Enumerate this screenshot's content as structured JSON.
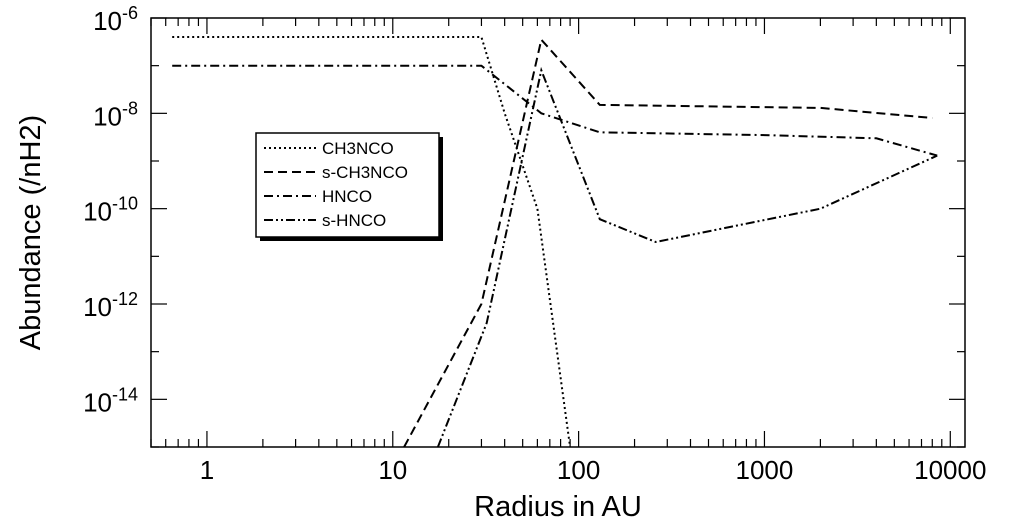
{
  "chart_data": {
    "type": "line",
    "title": "",
    "xlabel": "Radius in AU",
    "ylabel": "Abundance (/nH2)",
    "x_scale": "log",
    "y_scale": "log",
    "xlim": [
      0.5,
      12000
    ],
    "ylim": [
      1e-15,
      1e-06
    ],
    "x_ticks": [
      {
        "value": 1,
        "label": "1"
      },
      {
        "value": 10,
        "label": "10"
      },
      {
        "value": 100,
        "label": "100"
      },
      {
        "value": 1000,
        "label": "1000"
      },
      {
        "value": 10000,
        "label": "10000"
      }
    ],
    "y_ticks": [
      {
        "value": 1e-06,
        "base": "10",
        "exp": "-6"
      },
      {
        "value": 1e-08,
        "base": "10",
        "exp": "-8"
      },
      {
        "value": 1e-10,
        "base": "10",
        "exp": "-10"
      },
      {
        "value": 1e-12,
        "base": "10",
        "exp": "-12"
      },
      {
        "value": 1e-14,
        "base": "10",
        "exp": "-14"
      }
    ],
    "grid": false,
    "legend_position": "center-left",
    "series": [
      {
        "name": "CH3NCO",
        "dash": "dotted",
        "x": [
          0.65,
          30,
          40,
          60,
          90
        ],
        "y": [
          4e-07,
          4e-07,
          1e-08,
          1e-10,
          1e-15
        ]
      },
      {
        "name": "s-CH3NCO",
        "dash": "dashed",
        "x": [
          11.5,
          30,
          63,
          130,
          2000,
          8000
        ],
        "y": [
          1e-15,
          1e-12,
          3.5e-07,
          1.5e-08,
          1.3e-08,
          8e-09
        ]
      },
      {
        "name": "HNCO",
        "dash": "dashdot",
        "x": [
          0.65,
          30,
          63,
          130,
          1000,
          4000,
          8500
        ],
        "y": [
          1e-07,
          1e-07,
          1e-08,
          4e-09,
          3.5e-09,
          3e-09,
          1.3e-09
        ]
      },
      {
        "name": "s-HNCO",
        "dash": "dashdotdot",
        "x": [
          17.5,
          32,
          63,
          130,
          260,
          2000,
          8500
        ],
        "y": [
          1e-15,
          4e-13,
          8e-08,
          6e-11,
          2e-11,
          1e-10,
          1.3e-09
        ]
      }
    ]
  }
}
